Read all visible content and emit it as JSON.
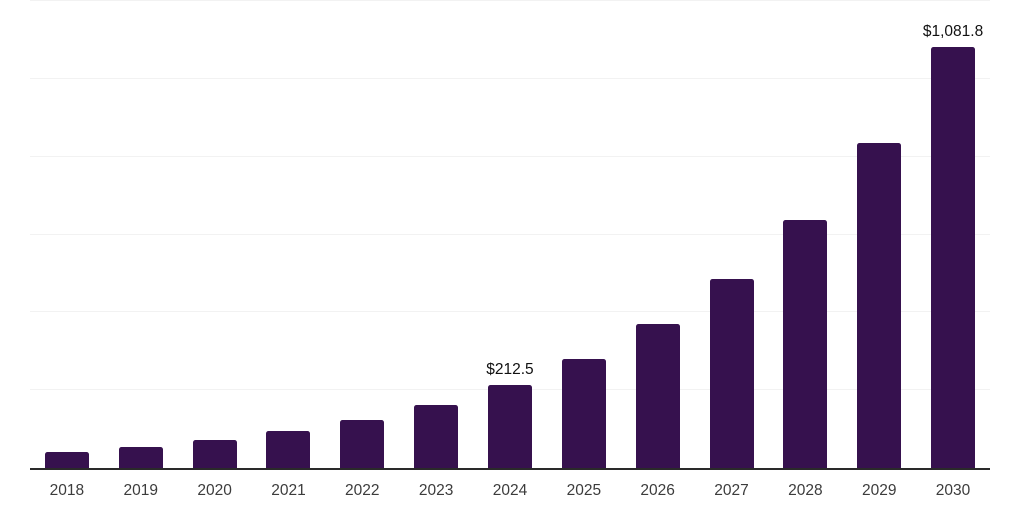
{
  "chart_data": {
    "type": "bar",
    "title": "",
    "categories": [
      "2018",
      "2019",
      "2020",
      "2021",
      "2022",
      "2023",
      "2024",
      "2025",
      "2026",
      "2027",
      "2028",
      "2029",
      "2030"
    ],
    "values": [
      42,
      55,
      72,
      94,
      123,
      162,
      212.5,
      280,
      370,
      485,
      637,
      834,
      1081.8
    ],
    "data_labels": {
      "2024": "$212.5",
      "2030": "$1,081.8"
    },
    "xlabel": "",
    "ylabel": "",
    "ylim": [
      0,
      1200
    ],
    "gridline_interval": 200,
    "grid": "horizontal-only",
    "y_axis_tick_labels": "none",
    "legend": "none",
    "colors": {
      "bar": "#36114E",
      "axis_line": "#2A2A2A",
      "gridline": "#F2F2F2",
      "value_label_text": "#111111",
      "tick_label_text": "#3C3C3C",
      "background": "#FFFFFF"
    }
  }
}
